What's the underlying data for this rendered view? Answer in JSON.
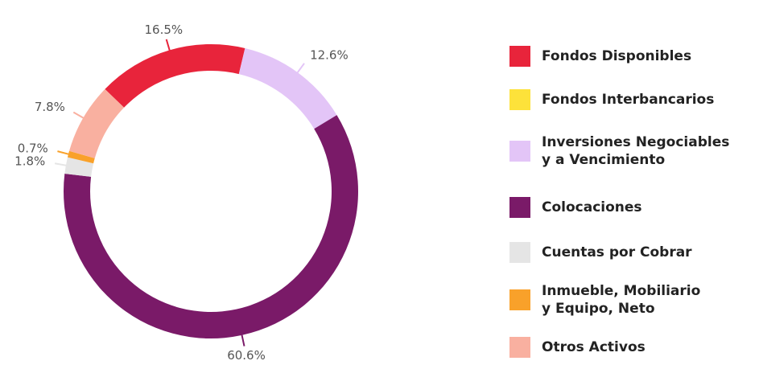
{
  "chart_data": {
    "type": "donut",
    "categories": [
      "Fondos Disponibles",
      "Fondos Interbancarios",
      "Inversiones Negociables\ny a Vencimiento",
      "Colocaciones",
      "Cuentas por Cobrar",
      "Inmueble, Mobiliario\ny Equipo, Neto",
      "Otros Activos"
    ],
    "values": [
      16.5,
      0,
      12.6,
      60.6,
      1.8,
      0.7,
      7.8
    ],
    "value_labels": [
      "16.5%",
      null,
      "12.6%",
      "60.6%",
      "1.8%",
      "0.7%",
      "7.8%"
    ],
    "colors": [
      "#e8243b",
      "#fde23a",
      "#e3c5f7",
      "#7a1a68",
      "#e5e5e5",
      "#f9a12a",
      "#f9b0a0"
    ],
    "legend": "right"
  }
}
